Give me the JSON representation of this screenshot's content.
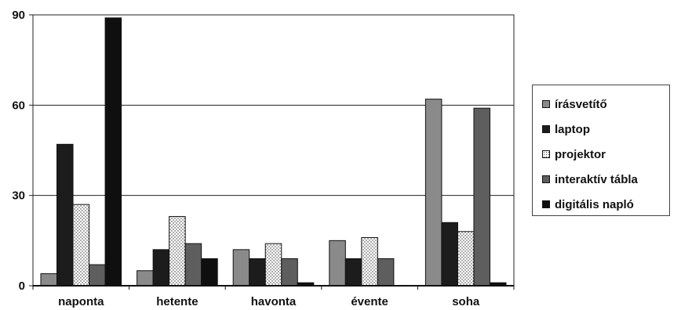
{
  "chart_data": {
    "type": "bar",
    "categories": [
      "naponta",
      "hetente",
      "havonta",
      "évente",
      "soha"
    ],
    "ylim": [
      0,
      90
    ],
    "yticks": [
      0,
      30,
      60,
      90
    ],
    "grid": true,
    "legend_position": "right",
    "series": [
      {
        "name": "írásvetítő",
        "color": "#8a8a8a",
        "pattern": "solid",
        "values": [
          4,
          5,
          12,
          15,
          62
        ]
      },
      {
        "name": "laptop",
        "color": "#1c1c1c",
        "pattern": "solid",
        "values": [
          47,
          12,
          9,
          9,
          21
        ]
      },
      {
        "name": "projektor",
        "color": "#ffffff",
        "pattern": "dots",
        "values": [
          27,
          23,
          14,
          16,
          18
        ]
      },
      {
        "name": "interaktív tábla",
        "color": "#5e5e5e",
        "pattern": "solid",
        "values": [
          7,
          14,
          9,
          9,
          59
        ]
      },
      {
        "name": "digitális napló",
        "color": "#0f0f0f",
        "pattern": "solid",
        "values": [
          89,
          9,
          1,
          0,
          1
        ]
      }
    ]
  }
}
